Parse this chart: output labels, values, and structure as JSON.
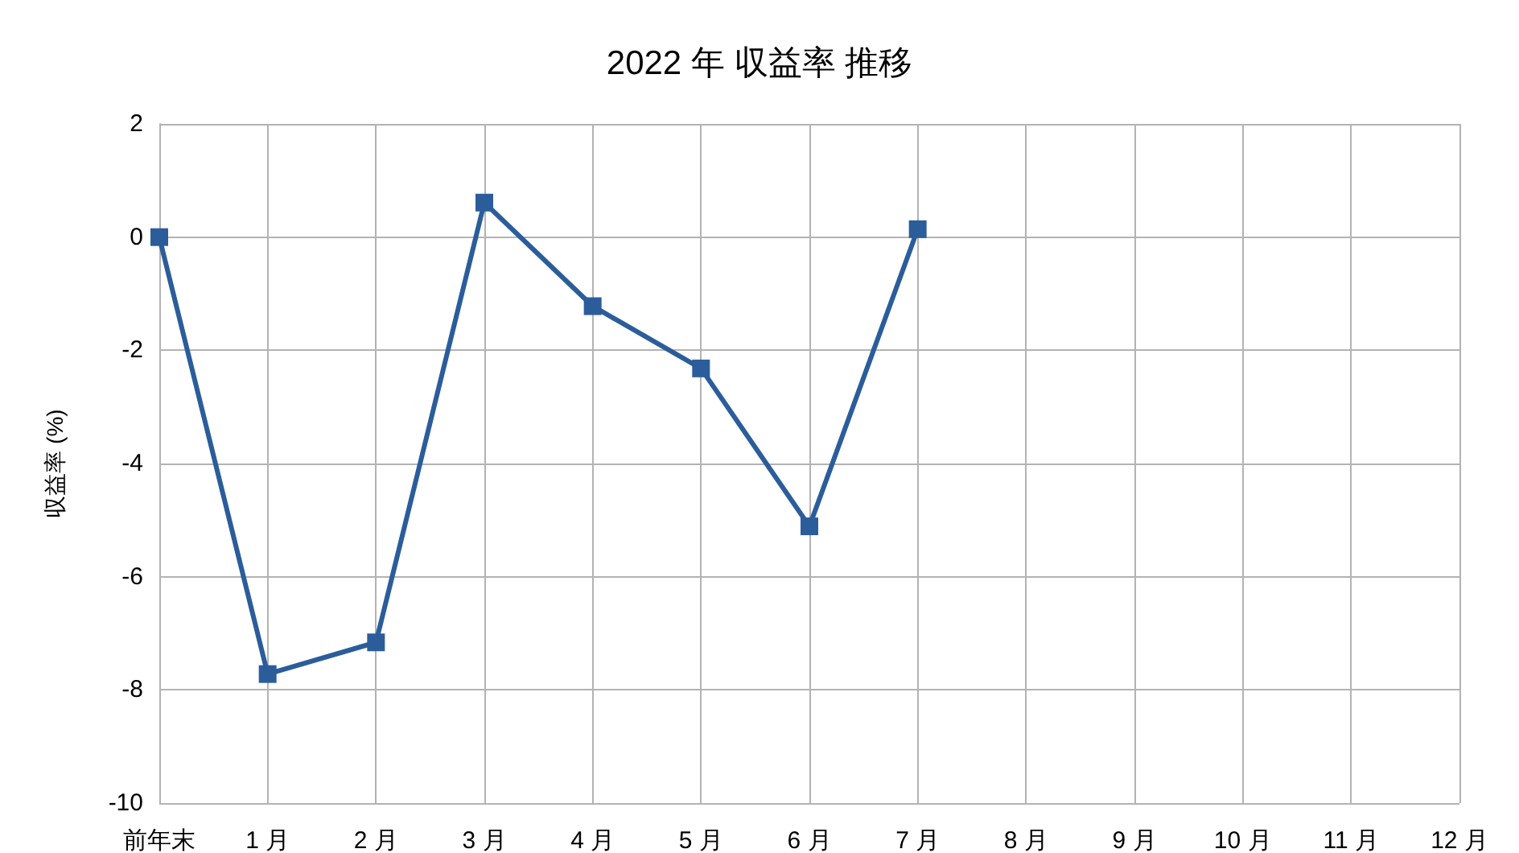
{
  "chart_data": {
    "type": "line",
    "title": "2022 年 収益率 推移",
    "ylabel": "収益率 (%)",
    "categories": [
      "前年末",
      "1 月",
      "2 月",
      "3 月",
      "4 月",
      "5 月",
      "6 月",
      "7 月",
      "8 月",
      "9 月",
      "10 月",
      "11 月",
      "12 月"
    ],
    "series": [
      {
        "color": "#2b5d9b",
        "values": [
          0,
          -7.72,
          -7.16,
          0.61,
          -1.22,
          -2.32,
          -5.11,
          0.14,
          null,
          null,
          null,
          null,
          null
        ]
      }
    ],
    "ylim": [
      -10,
      2
    ],
    "yticks": [
      -10,
      -8,
      -6,
      -4,
      -2,
      0,
      2
    ],
    "grid": true,
    "marker": "square",
    "line_style": "solid"
  }
}
